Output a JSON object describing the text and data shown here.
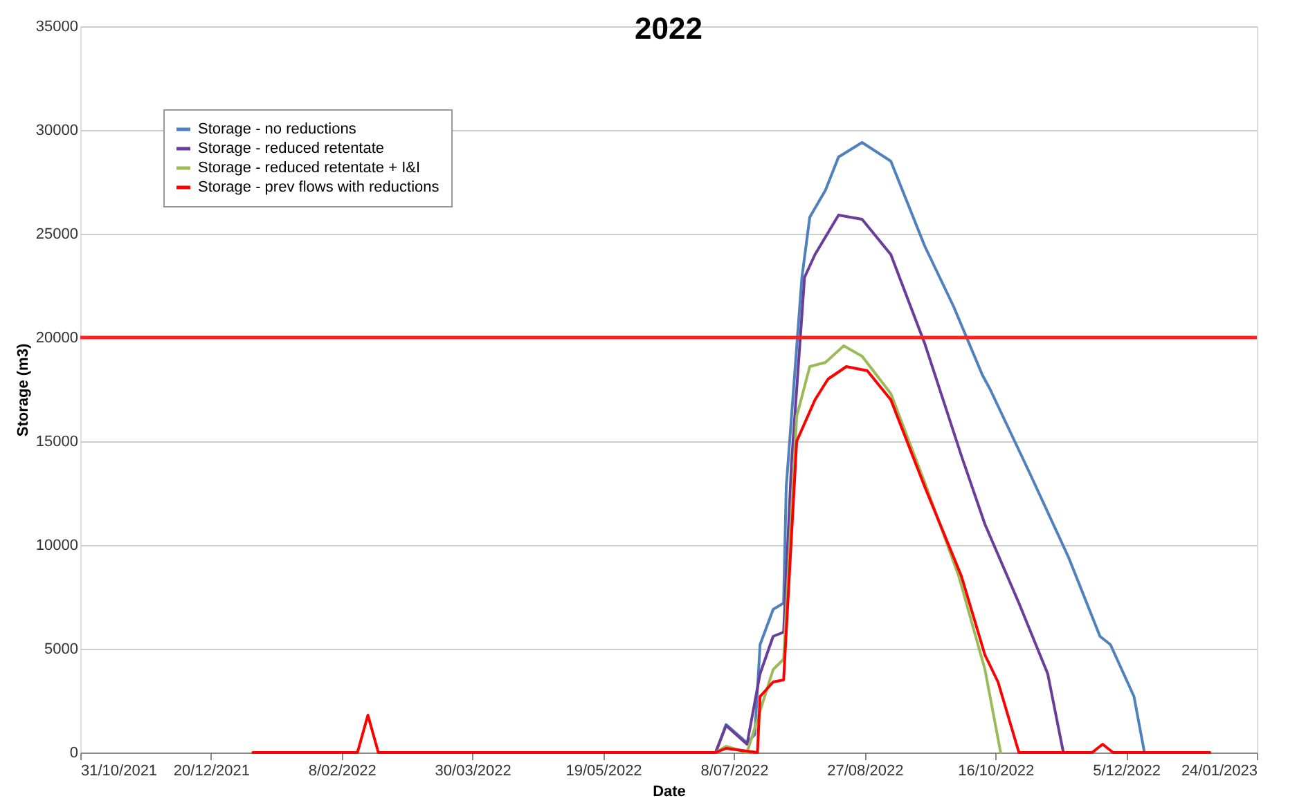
{
  "chart_data": {
    "type": "line",
    "title": "2022",
    "xlabel": "Date",
    "ylabel": "Storage (m3)",
    "xlim": [
      "2021-10-31",
      "2023-01-24"
    ],
    "xticks": [
      {
        "value": "2021-10-31",
        "label": "31/10/2021"
      },
      {
        "value": "2021-12-20",
        "label": "20/12/2021"
      },
      {
        "value": "2022-02-08",
        "label": "8/02/2022"
      },
      {
        "value": "2022-03-30",
        "label": "30/03/2022"
      },
      {
        "value": "2022-05-19",
        "label": "19/05/2022"
      },
      {
        "value": "2022-07-08",
        "label": "8/07/2022"
      },
      {
        "value": "2022-08-27",
        "label": "27/08/2022"
      },
      {
        "value": "2022-10-16",
        "label": "16/10/2022"
      },
      {
        "value": "2022-12-05",
        "label": "5/12/2022"
      },
      {
        "value": "2023-01-24",
        "label": "24/01/2023"
      }
    ],
    "ylim": [
      0,
      35000
    ],
    "yticks": [
      0,
      5000,
      10000,
      15000,
      20000,
      25000,
      30000,
      35000
    ],
    "grid": "y",
    "legend": "top left",
    "ref_lines": [
      {
        "axis": "y",
        "value": 20000,
        "color": "#ff2020"
      }
    ],
    "series": [
      {
        "name": "Storage - no reductions",
        "color": "#4f81bd",
        "x": [
          "2022-07-01",
          "2022-07-05",
          "2022-07-13",
          "2022-07-16",
          "2022-07-18",
          "2022-07-23",
          "2022-07-27",
          "2022-07-28",
          "2022-08-03",
          "2022-08-06",
          "2022-08-12",
          "2022-08-17",
          "2022-08-26",
          "2022-09-06",
          "2022-09-19",
          "2022-09-30",
          "2022-10-11",
          "2022-10-14",
          "2022-10-29",
          "2022-11-13",
          "2022-11-25",
          "2022-11-29",
          "2022-12-08",
          "2022-12-12"
        ],
        "values": [
          0,
          1350,
          470,
          870,
          5200,
          6900,
          7200,
          12800,
          22900,
          25800,
          27100,
          28700,
          29400,
          28500,
          24400,
          21500,
          18200,
          17500,
          13500,
          9400,
          5600,
          5200,
          2700,
          0
        ]
      },
      {
        "name": "Storage - reduced retentate",
        "color": "#6a3d9a",
        "x": [
          "2022-07-01",
          "2022-07-05",
          "2022-07-13",
          "2022-07-18",
          "2022-07-23",
          "2022-07-27",
          "2022-07-30",
          "2022-08-04",
          "2022-08-08",
          "2022-08-17",
          "2022-08-26",
          "2022-09-06",
          "2022-09-19",
          "2022-10-03",
          "2022-10-12",
          "2022-10-25",
          "2022-11-05",
          "2022-11-11"
        ],
        "values": [
          0,
          1300,
          400,
          3800,
          5600,
          5800,
          13900,
          22900,
          24000,
          25900,
          25700,
          24000,
          19700,
          14300,
          11000,
          7200,
          3800,
          0
        ]
      },
      {
        "name": "Storage - reduced retentate + I&I",
        "color": "#9bbb59",
        "x": [
          "2022-07-01",
          "2022-07-05",
          "2022-07-13",
          "2022-07-18",
          "2022-07-23",
          "2022-07-27",
          "2022-08-01",
          "2022-08-06",
          "2022-08-12",
          "2022-08-19",
          "2022-08-26",
          "2022-09-06",
          "2022-09-19",
          "2022-10-02",
          "2022-10-12",
          "2022-10-18"
        ],
        "values": [
          0,
          300,
          0,
          2000,
          4000,
          4500,
          16200,
          18600,
          18800,
          19600,
          19100,
          17300,
          13000,
          8500,
          4000,
          0
        ]
      },
      {
        "name": "Storage - prev flows with reductions",
        "color": "#ff0000",
        "x": [
          "2022-01-05",
          "2022-02-14",
          "2022-02-18",
          "2022-02-22",
          "2022-07-01",
          "2022-07-05",
          "2022-07-17",
          "2022-07-18",
          "2022-07-23",
          "2022-07-27",
          "2022-08-01",
          "2022-08-08",
          "2022-08-13",
          "2022-08-20",
          "2022-08-28",
          "2022-09-06",
          "2022-09-19",
          "2022-10-03",
          "2022-10-12",
          "2022-10-17",
          "2022-10-25",
          "2022-11-22",
          "2022-11-26",
          "2022-11-30",
          "2023-01-06"
        ],
        "values": [
          0,
          0,
          1800,
          0,
          0,
          200,
          0,
          2700,
          3400,
          3500,
          15000,
          17000,
          18000,
          18600,
          18400,
          17000,
          12800,
          8500,
          4700,
          3400,
          0,
          0,
          400,
          0,
          0
        ]
      }
    ]
  }
}
